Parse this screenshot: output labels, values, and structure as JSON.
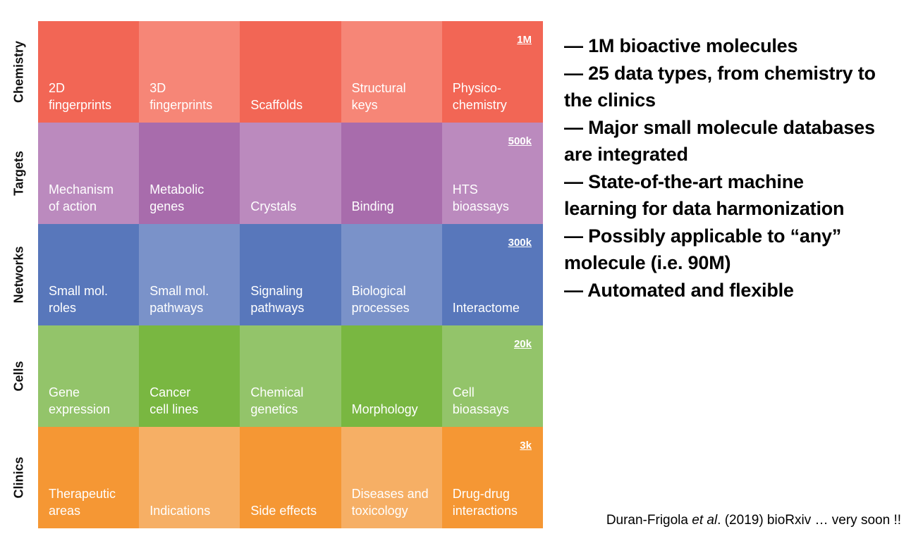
{
  "colors": {
    "Chemistry": [
      "#f26655",
      "#f68677"
    ],
    "Targets": [
      "#bb8abe",
      "#a86cac"
    ],
    "Networks": [
      "#5877bb",
      "#7a92c9"
    ],
    "Cells": [
      "#93c46a",
      "#79b741"
    ],
    "Clinics": [
      "#f59734",
      "#f6af65"
    ]
  },
  "rows": [
    {
      "name": "Chemistry",
      "count": "1M",
      "cells": [
        "2D\nfingerprints",
        "3D\nfingerprints",
        "Scaffolds",
        "Structural\nkeys",
        "Physico-\nchemistry"
      ]
    },
    {
      "name": "Targets",
      "count": "500k",
      "cells": [
        "Mechanism\nof action",
        "Metabolic\ngenes",
        "Crystals",
        "Binding",
        "HTS\nbioassays"
      ]
    },
    {
      "name": "Networks",
      "count": "300k",
      "cells": [
        "Small mol.\nroles",
        "Small mol.\npathways",
        "Signaling\npathways",
        "Biological\nprocesses",
        "Interactome"
      ]
    },
    {
      "name": "Cells",
      "count": "20k",
      "cells": [
        "Gene\nexpression",
        "Cancer\ncell lines",
        "Chemical\ngenetics",
        "Morphology",
        "Cell\nbioassays"
      ]
    },
    {
      "name": "Clinics",
      "count": "3k",
      "cells": [
        "Therapeutic\nareas",
        "Indications",
        "Side effects",
        "Diseases and\ntoxicology",
        "Drug-drug\ninteractions"
      ]
    }
  ],
  "bullets": [
    "— 1M bioactive molecules",
    "— 25 data types, from chemistry to\n     the clinics",
    "— Major small molecule databases\n     are integrated",
    "— State-of-the-art machine\n     learning for data harmonization",
    "— Possibly applicable to “any”\n     molecule (i.e. 90M)",
    "— Automated and flexible"
  ],
  "citation": {
    "authors": "Duran-Frigola ",
    "etal": "et al",
    "rest": ". (2019) bioRxiv … very soon !!"
  }
}
